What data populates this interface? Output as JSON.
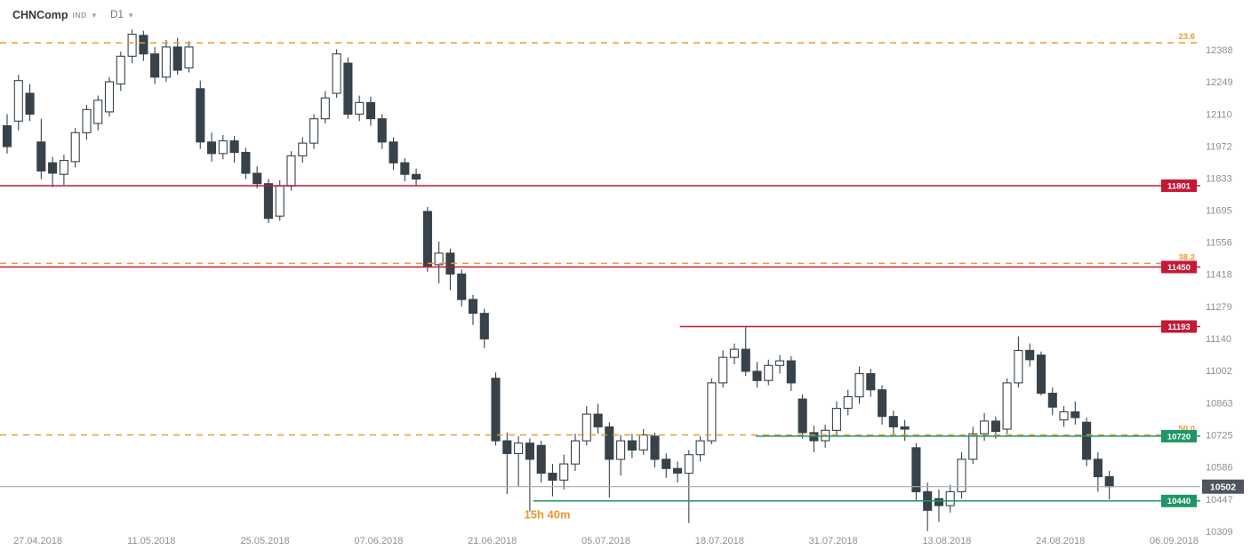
{
  "header": {
    "symbol": "CHNComp",
    "instrument_type": "IND",
    "timeframe": "D1"
  },
  "colors": {
    "bearish": "#37424b",
    "bullish_fill": "#ffffff",
    "candle_stroke": "#37424b",
    "fib": "#e89a2f",
    "resistance": "#c41935",
    "support": "#1f9568",
    "current_line": "#a8adb3",
    "current_badge_bg": "#4d565e",
    "axis_text": "#8b9096"
  },
  "chart_data": {
    "type": "candlestick",
    "title": "CHNComp daily candlestick chart",
    "symbol": "CHNComp",
    "timeframe": "D1",
    "legend_position": "none",
    "grid": false,
    "y_axis": {
      "ticks": [
        12388,
        12249,
        12110,
        11972,
        11833,
        11695,
        11556,
        11418,
        11279,
        11140,
        11002,
        10863,
        10725,
        10586,
        10447,
        10309
      ]
    },
    "x_axis": {
      "labels": [
        "27.04.2018",
        "11.05.2018",
        "25.05.2018",
        "07.06.2018",
        "21.06.2018",
        "05.07.2018",
        "18.07.2018",
        "31.07.2018",
        "13.08.2018",
        "24.08.2018",
        "06.09.2018"
      ],
      "indices": [
        2.7,
        12.7,
        22.7,
        32.7,
        42.7,
        52.7,
        62.7,
        72.7,
        82.7,
        92.7,
        102.7
      ]
    },
    "current_price": 10502,
    "h_lines": [
      {
        "value": 12418,
        "label": "23.6",
        "kind": "fib",
        "style": "dashed",
        "from_index": 0
      },
      {
        "value": 11801,
        "label": "11801",
        "kind": "resistance",
        "style": "solid",
        "from_index": 0
      },
      {
        "value": 11466,
        "label": "38.2",
        "kind": "fib",
        "style": "dashed",
        "from_index": 0
      },
      {
        "value": 11450,
        "label": "11450",
        "kind": "resistance",
        "style": "solid",
        "from_index": 0
      },
      {
        "value": 11193,
        "label": "11193",
        "kind": "resistance",
        "style": "solid",
        "from_index": 59.2
      },
      {
        "value": 10725,
        "label": "50.0",
        "kind": "fib",
        "style": "dashed",
        "from_index": 0
      },
      {
        "value": 10720,
        "label": "10720",
        "kind": "support",
        "style": "solid",
        "from_index": 65.9
      },
      {
        "value": 10502,
        "label": "10502",
        "kind": "current",
        "style": "solid",
        "from_index": 0
      },
      {
        "value": 10440,
        "label": "10440",
        "kind": "support",
        "style": "solid",
        "from_index": 46.3
      }
    ],
    "time_annotation": {
      "text": "15h 40m",
      "index": 45.5,
      "price": 10365
    },
    "candles": [
      [
        12060,
        12110,
        11940,
        11970
      ],
      [
        12080,
        12280,
        12040,
        12255
      ],
      [
        12200,
        12240,
        12080,
        12110
      ],
      [
        11990,
        12090,
        11830,
        11865
      ],
      [
        11900,
        11925,
        11795,
        11855
      ],
      [
        11850,
        11935,
        11805,
        11910
      ],
      [
        11905,
        12050,
        11880,
        12030
      ],
      [
        12030,
        12150,
        12000,
        12130
      ],
      [
        12070,
        12190,
        12040,
        12170
      ],
      [
        12120,
        12270,
        12100,
        12250
      ],
      [
        12240,
        12380,
        12210,
        12360
      ],
      [
        12360,
        12475,
        12330,
        12455
      ],
      [
        12450,
        12470,
        12340,
        12370
      ],
      [
        12370,
        12400,
        12240,
        12270
      ],
      [
        12270,
        12430,
        12250,
        12400
      ],
      [
        12400,
        12440,
        12280,
        12300
      ],
      [
        12310,
        12425,
        12290,
        12400
      ],
      [
        12220,
        12255,
        11960,
        11990
      ],
      [
        11990,
        12030,
        11905,
        11940
      ],
      [
        11940,
        12020,
        11915,
        11995
      ],
      [
        11995,
        12015,
        11900,
        11945
      ],
      [
        11945,
        11965,
        11830,
        11855
      ],
      [
        11855,
        11885,
        11790,
        11810
      ],
      [
        11810,
        11830,
        11640,
        11660
      ],
      [
        11670,
        11825,
        11650,
        11800
      ],
      [
        11800,
        11950,
        11780,
        11930
      ],
      [
        11930,
        12010,
        11900,
        11985
      ],
      [
        11985,
        12110,
        11960,
        12090
      ],
      [
        12090,
        12210,
        12070,
        12180
      ],
      [
        12200,
        12390,
        12180,
        12370
      ],
      [
        12330,
        12355,
        12090,
        12110
      ],
      [
        12110,
        12190,
        12080,
        12160
      ],
      [
        12160,
        12185,
        12060,
        12090
      ],
      [
        12090,
        12110,
        11960,
        11990
      ],
      [
        11990,
        12010,
        11870,
        11900
      ],
      [
        11900,
        11920,
        11820,
        11850
      ],
      [
        11850,
        11875,
        11800,
        11830
      ],
      [
        11690,
        11710,
        11430,
        11455
      ],
      [
        11460,
        11560,
        11380,
        11510
      ],
      [
        11510,
        11530,
        11350,
        11420
      ],
      [
        11420,
        11440,
        11280,
        11310
      ],
      [
        11310,
        11330,
        11200,
        11250
      ],
      [
        11250,
        11270,
        11100,
        11140
      ],
      [
        10970,
        10995,
        10680,
        10700
      ],
      [
        10700,
        10735,
        10470,
        10645
      ],
      [
        10645,
        10720,
        10500,
        10690
      ],
      [
        10690,
        10710,
        10395,
        10620
      ],
      [
        10680,
        10700,
        10520,
        10560
      ],
      [
        10560,
        10600,
        10460,
        10530
      ],
      [
        10530,
        10640,
        10490,
        10600
      ],
      [
        10600,
        10730,
        10570,
        10700
      ],
      [
        10700,
        10850,
        10680,
        10815
      ],
      [
        10815,
        10860,
        10730,
        10760
      ],
      [
        10760,
        10780,
        10455,
        10620
      ],
      [
        10620,
        10725,
        10550,
        10700
      ],
      [
        10700,
        10730,
        10625,
        10660
      ],
      [
        10660,
        10750,
        10640,
        10725
      ],
      [
        10720,
        10735,
        10585,
        10620
      ],
      [
        10620,
        10645,
        10540,
        10580
      ],
      [
        10580,
        10610,
        10520,
        10560
      ],
      [
        10560,
        10660,
        10345,
        10640
      ],
      [
        10640,
        10720,
        10610,
        10700
      ],
      [
        10700,
        10970,
        10685,
        10950
      ],
      [
        10950,
        11090,
        10930,
        11060
      ],
      [
        11060,
        11120,
        11030,
        11095
      ],
      [
        11095,
        11190,
        10980,
        11000
      ],
      [
        11000,
        11040,
        10930,
        10960
      ],
      [
        10960,
        11050,
        10940,
        11025
      ],
      [
        11025,
        11070,
        10990,
        11045
      ],
      [
        11045,
        11065,
        10915,
        10950
      ],
      [
        10880,
        10900,
        10710,
        10735
      ],
      [
        10735,
        10765,
        10650,
        10700
      ],
      [
        10700,
        10770,
        10670,
        10745
      ],
      [
        10745,
        10870,
        10720,
        10840
      ],
      [
        10840,
        10920,
        10810,
        10890
      ],
      [
        10890,
        11020,
        10860,
        10990
      ],
      [
        10990,
        11010,
        10890,
        10920
      ],
      [
        10920,
        10940,
        10770,
        10805
      ],
      [
        10805,
        10830,
        10720,
        10760
      ],
      [
        10760,
        10790,
        10700,
        10750
      ],
      [
        10670,
        10690,
        10440,
        10480
      ],
      [
        10480,
        10520,
        10310,
        10400
      ],
      [
        10450,
        10490,
        10350,
        10420
      ],
      [
        10420,
        10510,
        10390,
        10480
      ],
      [
        10480,
        10650,
        10450,
        10620
      ],
      [
        10620,
        10760,
        10600,
        10730
      ],
      [
        10730,
        10820,
        10700,
        10785
      ],
      [
        10785,
        10805,
        10710,
        10740
      ],
      [
        10750,
        10970,
        10730,
        10950
      ],
      [
        10950,
        11150,
        10930,
        11090
      ],
      [
        11090,
        11120,
        11020,
        11050
      ],
      [
        11070,
        11085,
        10895,
        10905
      ],
      [
        10905,
        10930,
        10810,
        10845
      ],
      [
        10790,
        10850,
        10760,
        10825
      ],
      [
        10825,
        10870,
        10770,
        10800
      ],
      [
        10780,
        10800,
        10590,
        10620
      ],
      [
        10620,
        10650,
        10480,
        10545
      ],
      [
        10545,
        10570,
        10447,
        10502
      ]
    ]
  }
}
